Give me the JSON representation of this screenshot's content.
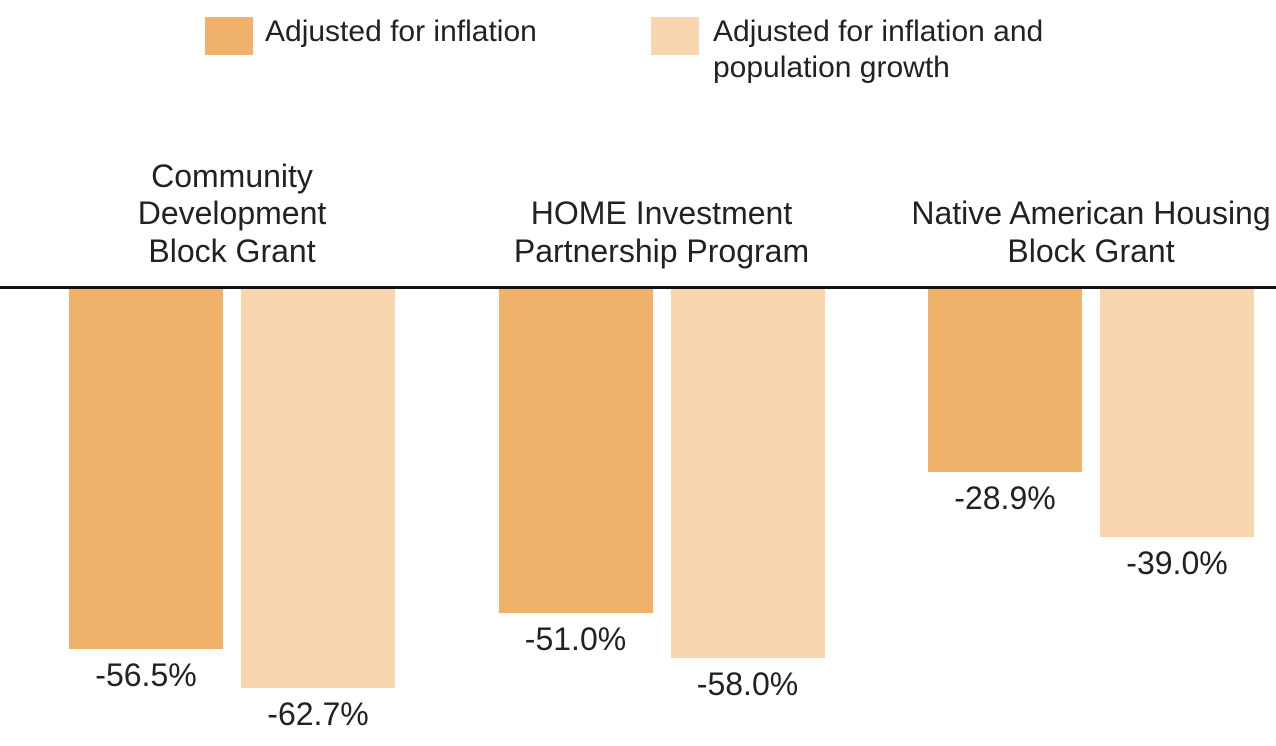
{
  "chart_data": {
    "type": "bar",
    "categories": [
      "Community Development Block Grant",
      "HOME Investment Partnership Program",
      "Native American Housing Block Grant"
    ],
    "series": [
      {
        "name": "Adjusted for inflation",
        "color": "#f0b26a",
        "values": [
          -56.5,
          -51.0,
          -28.9
        ],
        "value_labels": [
          "-56.5%",
          "-51.0%",
          "-28.9%"
        ]
      },
      {
        "name": "Adjusted for inflation and population growth",
        "color": "#f7d6b0",
        "values": [
          -62.7,
          -58.0,
          -39.0
        ],
        "value_labels": [
          "-62.7%",
          "-58.0%",
          "-39.0%"
        ]
      }
    ],
    "ylim": [
      -70,
      0
    ]
  }
}
